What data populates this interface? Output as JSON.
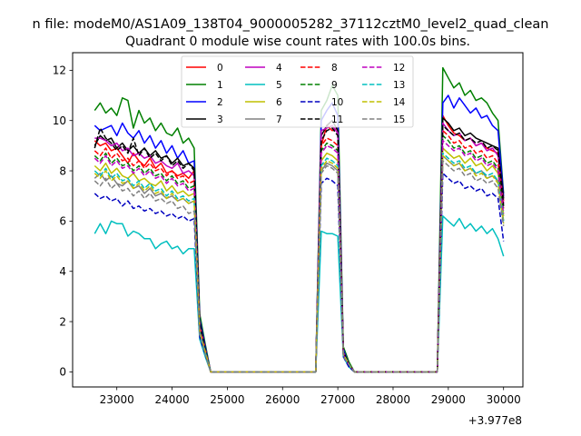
{
  "figure": {
    "suptitle": "n file: modeM0/AS1A09_138T04_9000005282_37112cztM0_level2_quad_clean",
    "title": "Quadrant 0 module wise count rates with 100.0s bins.",
    "offset_text": "+3.977e8"
  },
  "chart_data": {
    "type": "line",
    "title": "Quadrant 0 module wise count rates with 100.0s bins.",
    "x_offset": 397700000,
    "xlim": [
      22200,
      30350
    ],
    "ylim": [
      -0.6,
      12.7
    ],
    "xticks": [
      23000,
      24000,
      25000,
      26000,
      27000,
      28000,
      29000,
      30000
    ],
    "xtick_labels": [
      "23000",
      "24000",
      "25000",
      "26000",
      "27000",
      "28000",
      "29000",
      "30000"
    ],
    "yticks": [
      0,
      2,
      4,
      6,
      8,
      10,
      12
    ],
    "ytick_labels": [
      "0",
      "2",
      "4",
      "6",
      "8",
      "10",
      "12"
    ],
    "grid": false,
    "legend": {
      "placement": "top-center",
      "columns": 4
    },
    "x_segments": {
      "seg1": {
        "start": 22600,
        "step": 100,
        "count": 19
      },
      "gap1": [
        24500,
        24600,
        24700,
        24800,
        24900,
        25000,
        25100,
        25200,
        25300,
        25400,
        25500,
        25600,
        25700,
        25800,
        25900,
        26000,
        26100,
        26200,
        26300,
        26400,
        26500,
        26600
      ],
      "peak_x": [
        26700,
        26800,
        26900,
        27000
      ],
      "gap2": [
        27100,
        27200,
        27300,
        27400,
        27500,
        27600,
        27700,
        27800,
        27900,
        28000,
        28100,
        28200,
        28300,
        28400,
        28500,
        28600,
        28700,
        28800
      ],
      "seg3": {
        "start": 28900,
        "step": 100,
        "count": 12
      }
    },
    "series": [
      {
        "name": "0",
        "color": "#ff0000",
        "dash": false,
        "seg1": [
          9.2,
          9.0,
          9.1,
          8.8,
          8.9,
          8.6,
          8.3,
          8.7,
          8.4,
          8.2,
          8.5,
          8.1,
          8.3,
          7.9,
          8.0,
          7.8,
          7.9,
          7.7,
          8.0
        ],
        "tail": [
          1.8,
          0.9
        ],
        "peak": [
          9.0,
          9.8,
          9.6,
          9.7
        ],
        "drop": [
          0.8,
          0.3
        ],
        "seg3": [
          10.2,
          9.8,
          9.5,
          9.4,
          9.2,
          9.3,
          9.0,
          9.1,
          8.9,
          8.8,
          8.7,
          6.8
        ]
      },
      {
        "name": "1",
        "color": "#008000",
        "dash": false,
        "seg1": [
          10.4,
          10.7,
          10.3,
          10.5,
          10.2,
          10.9,
          10.8,
          9.7,
          10.4,
          9.9,
          10.1,
          9.6,
          9.9,
          9.5,
          9.4,
          9.7,
          9.1,
          9.3,
          8.9
        ],
        "tail": [
          2.3,
          1.1
        ],
        "peak": [
          10.4,
          10.8,
          11.4,
          11.0
        ],
        "drop": [
          1.0,
          0.4
        ],
        "seg3": [
          12.1,
          11.7,
          11.3,
          11.5,
          11.0,
          11.2,
          10.8,
          10.9,
          10.7,
          10.3,
          10.0,
          7.1
        ]
      },
      {
        "name": "2",
        "color": "#0000ff",
        "dash": false,
        "seg1": [
          9.8,
          9.6,
          9.7,
          9.8,
          9.4,
          9.9,
          9.5,
          9.3,
          9.6,
          9.1,
          9.4,
          8.9,
          9.2,
          8.7,
          9.0,
          8.5,
          8.8,
          8.3,
          8.4
        ],
        "tail": [
          2.1,
          1.0
        ],
        "peak": [
          10.0,
          10.4,
          10.7,
          10.2
        ],
        "drop": [
          0.9,
          0.3
        ],
        "seg3": [
          10.7,
          11.0,
          10.5,
          10.9,
          10.6,
          10.3,
          10.5,
          10.1,
          10.2,
          9.8,
          9.6,
          7.0
        ]
      },
      {
        "name": "3",
        "color": "#000000",
        "dash": false,
        "seg1": [
          9.0,
          9.4,
          9.2,
          9.3,
          8.9,
          9.1,
          8.8,
          9.0,
          8.7,
          8.9,
          8.6,
          8.8,
          8.5,
          8.6,
          8.3,
          8.5,
          8.2,
          8.3,
          8.1
        ],
        "tail": [
          2.0,
          0.9
        ],
        "peak": [
          9.4,
          9.8,
          10.0,
          9.6
        ],
        "drop": [
          0.8,
          0.3
        ],
        "seg3": [
          10.1,
          9.9,
          9.6,
          9.7,
          9.4,
          9.5,
          9.3,
          9.2,
          9.1,
          9.0,
          8.9,
          6.9
        ]
      },
      {
        "name": "4",
        "color": "#bf00bf",
        "dash": false,
        "seg1": [
          9.3,
          9.3,
          9.2,
          9.0,
          9.1,
          8.8,
          8.9,
          8.6,
          8.7,
          8.5,
          8.6,
          8.3,
          8.4,
          8.2,
          8.1,
          8.3,
          7.9,
          8.0,
          7.8
        ],
        "tail": [
          1.9,
          0.9
        ],
        "peak": [
          9.6,
          9.7,
          9.8,
          9.5
        ],
        "drop": [
          0.8,
          0.3
        ],
        "seg3": [
          9.9,
          9.6,
          9.4,
          9.5,
          9.2,
          9.3,
          9.0,
          9.1,
          8.8,
          8.9,
          8.6,
          6.7
        ]
      },
      {
        "name": "5",
        "color": "#00bfbf",
        "dash": false,
        "seg1": [
          5.5,
          5.9,
          5.5,
          6.0,
          5.9,
          5.9,
          5.4,
          5.6,
          5.5,
          5.3,
          5.3,
          4.9,
          5.1,
          5.2,
          4.9,
          5.0,
          4.7,
          4.9,
          4.9
        ],
        "tail": [
          1.3,
          0.6
        ],
        "peak": [
          5.6,
          5.5,
          5.5,
          5.4
        ],
        "drop": [
          0.6,
          0.2
        ],
        "seg3": [
          6.2,
          6.0,
          5.8,
          6.1,
          5.7,
          5.9,
          5.6,
          5.8,
          5.5,
          5.7,
          5.3,
          4.6
        ]
      },
      {
        "name": "6",
        "color": "#bfbf00",
        "dash": false,
        "seg1": [
          8.2,
          8.0,
          8.3,
          7.9,
          8.1,
          7.8,
          7.7,
          7.9,
          7.6,
          7.7,
          7.5,
          7.4,
          7.6,
          7.2,
          7.4,
          7.1,
          7.2,
          7.0,
          7.1
        ],
        "tail": [
          1.7,
          0.8
        ],
        "peak": [
          8.4,
          8.7,
          8.6,
          8.4
        ],
        "drop": [
          0.7,
          0.3
        ],
        "seg3": [
          8.9,
          8.7,
          8.5,
          8.6,
          8.3,
          8.5,
          8.2,
          8.3,
          8.0,
          8.2,
          7.9,
          6.2
        ]
      },
      {
        "name": "7",
        "color": "#808080",
        "dash": false,
        "seg1": [
          7.7,
          7.9,
          7.6,
          7.8,
          7.5,
          7.4,
          7.6,
          7.3,
          7.4,
          7.1,
          7.3,
          7.0,
          7.1,
          6.9,
          7.0,
          6.8,
          6.9,
          6.7,
          6.8
        ],
        "tail": [
          1.6,
          0.8
        ],
        "peak": [
          8.0,
          8.3,
          8.2,
          8.0
        ],
        "drop": [
          0.7,
          0.3
        ],
        "seg3": [
          8.6,
          8.4,
          8.2,
          8.3,
          8.0,
          8.1,
          7.9,
          8.0,
          7.7,
          7.8,
          7.6,
          6.0
        ]
      },
      {
        "name": "8",
        "color": "#ff0000",
        "dash": true,
        "seg1": [
          8.8,
          8.6,
          8.9,
          8.5,
          8.7,
          8.4,
          8.5,
          8.2,
          8.4,
          8.1,
          8.3,
          8.0,
          8.1,
          7.8,
          8.0,
          7.7,
          7.8,
          7.5,
          7.6
        ],
        "tail": [
          1.8,
          0.9
        ],
        "peak": [
          9.0,
          9.3,
          9.2,
          9.0
        ],
        "drop": [
          0.8,
          0.3
        ],
        "seg3": [
          9.6,
          9.4,
          9.1,
          9.2,
          8.9,
          9.0,
          8.7,
          8.8,
          8.5,
          8.6,
          8.3,
          6.5
        ]
      },
      {
        "name": "9",
        "color": "#008000",
        "dash": true,
        "seg1": [
          8.6,
          8.4,
          8.7,
          8.3,
          8.5,
          8.2,
          8.3,
          8.0,
          8.2,
          7.9,
          8.1,
          7.8,
          7.9,
          7.6,
          7.8,
          7.5,
          7.6,
          7.3,
          7.4
        ],
        "tail": [
          1.8,
          0.9
        ],
        "peak": [
          8.8,
          9.1,
          9.0,
          8.8
        ],
        "drop": [
          0.8,
          0.3
        ],
        "seg3": [
          9.4,
          9.2,
          8.9,
          9.0,
          8.7,
          8.8,
          8.5,
          8.6,
          8.3,
          8.4,
          8.1,
          6.4
        ]
      },
      {
        "name": "10",
        "color": "#0000bf",
        "dash": true,
        "seg1": [
          7.1,
          6.9,
          7.0,
          6.8,
          6.9,
          6.6,
          6.8,
          6.5,
          6.6,
          6.4,
          6.5,
          6.3,
          6.4,
          6.2,
          6.3,
          6.1,
          6.2,
          6.0,
          6.1
        ],
        "tail": [
          1.4,
          0.7
        ],
        "peak": [
          7.5,
          7.7,
          7.6,
          7.4
        ],
        "drop": [
          0.6,
          0.2
        ],
        "seg3": [
          7.9,
          7.7,
          7.5,
          7.6,
          7.3,
          7.4,
          7.2,
          7.3,
          7.0,
          7.1,
          6.9,
          5.2
        ]
      },
      {
        "name": "11",
        "color": "#000000",
        "dash": true,
        "seg1": [
          8.9,
          9.7,
          9.3,
          9.1,
          8.8,
          9.0,
          8.7,
          9.3,
          8.6,
          8.9,
          8.5,
          8.7,
          8.4,
          8.6,
          8.2,
          8.4,
          8.1,
          8.3,
          8.0
        ],
        "tail": [
          1.9,
          0.9
        ],
        "peak": [
          9.2,
          9.6,
          9.7,
          9.4
        ],
        "drop": [
          0.8,
          0.3
        ],
        "seg3": [
          9.8,
          9.6,
          9.4,
          9.5,
          9.2,
          9.3,
          9.1,
          9.2,
          8.9,
          9.0,
          8.8,
          6.6
        ]
      },
      {
        "name": "12",
        "color": "#bf00bf",
        "dash": true,
        "seg1": [
          8.5,
          8.3,
          8.6,
          8.2,
          8.4,
          8.1,
          8.2,
          7.9,
          8.1,
          7.8,
          8.0,
          7.7,
          7.8,
          7.5,
          7.7,
          7.4,
          7.5,
          7.2,
          7.3
        ],
        "tail": [
          1.7,
          0.8
        ],
        "peak": [
          8.7,
          9.0,
          8.9,
          8.7
        ],
        "drop": [
          0.7,
          0.3
        ],
        "seg3": [
          9.2,
          9.0,
          8.8,
          8.9,
          8.6,
          8.7,
          8.4,
          8.5,
          8.2,
          8.3,
          8.0,
          6.3
        ]
      },
      {
        "name": "13",
        "color": "#00bfbf",
        "dash": true,
        "seg1": [
          8.0,
          7.8,
          8.1,
          7.7,
          7.9,
          7.6,
          7.7,
          7.4,
          7.6,
          7.3,
          7.5,
          7.2,
          7.3,
          7.0,
          7.2,
          6.9,
          7.0,
          6.8,
          6.9
        ],
        "tail": [
          1.6,
          0.8
        ],
        "peak": [
          8.2,
          8.5,
          8.4,
          8.2
        ],
        "drop": [
          0.7,
          0.3
        ],
        "seg3": [
          8.7,
          8.5,
          8.3,
          8.4,
          8.1,
          8.2,
          7.9,
          8.0,
          7.8,
          7.9,
          7.6,
          6.0
        ]
      },
      {
        "name": "14",
        "color": "#bfbf00",
        "dash": true,
        "seg1": [
          7.9,
          7.7,
          8.0,
          7.6,
          7.8,
          7.5,
          7.6,
          7.3,
          7.5,
          7.2,
          7.4,
          7.1,
          7.2,
          6.9,
          7.1,
          6.8,
          6.9,
          6.7,
          6.8
        ],
        "tail": [
          1.6,
          0.8
        ],
        "peak": [
          8.1,
          8.4,
          8.3,
          8.1
        ],
        "drop": [
          0.7,
          0.3
        ],
        "seg3": [
          8.6,
          8.4,
          8.2,
          8.3,
          8.0,
          8.1,
          7.8,
          7.9,
          7.7,
          7.8,
          7.5,
          5.9
        ]
      },
      {
        "name": "15",
        "color": "#808080",
        "dash": true,
        "seg1": [
          7.6,
          7.4,
          7.7,
          7.3,
          7.5,
          7.2,
          7.3,
          7.0,
          7.2,
          6.9,
          7.1,
          6.8,
          6.9,
          6.7,
          6.8,
          6.5,
          6.6,
          6.3,
          6.4
        ],
        "tail": [
          1.5,
          0.7
        ],
        "peak": [
          7.9,
          8.2,
          8.1,
          7.9
        ],
        "drop": [
          0.6,
          0.3
        ],
        "seg3": [
          8.4,
          8.2,
          8.0,
          8.1,
          7.8,
          7.9,
          7.6,
          7.7,
          7.5,
          7.6,
          7.3,
          5.8
        ]
      }
    ]
  }
}
